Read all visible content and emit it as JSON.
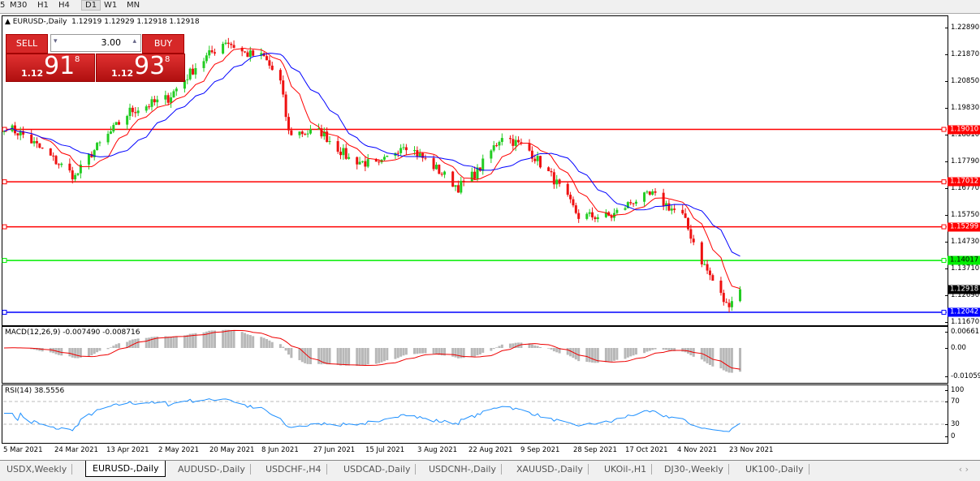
{
  "timeframes": [
    "5",
    "M30",
    "H1",
    "H4",
    "D1",
    "W1",
    "MN"
  ],
  "active_timeframe": "D1",
  "chart": {
    "title": "EURUSD-,Daily",
    "ohlc": "1.12919 1.12929 1.12918 1.12918"
  },
  "trade_panel": {
    "sell_label": "SELL",
    "buy_label": "BUY",
    "lot": "3.00",
    "sell_small": "1.12",
    "sell_big": "91",
    "sell_exp": "8",
    "buy_small": "1.12",
    "buy_big": "93",
    "buy_exp": "8"
  },
  "price_axis": [
    "1.22890",
    "1.21870",
    "1.20850",
    "1.19830",
    "1.18810",
    "1.17790",
    "1.16770",
    "1.15750",
    "1.14730",
    "1.13710",
    "1.12690",
    "1.11670"
  ],
  "horizontal_lines": [
    {
      "price": "1.19010",
      "color": "#ff0000"
    },
    {
      "price": "1.17012",
      "color": "#ff0000"
    },
    {
      "price": "1.15299",
      "color": "#ff0000"
    },
    {
      "price": "1.14017",
      "color": "#00ee00"
    },
    {
      "price": "1.12042",
      "color": "#0000ff"
    }
  ],
  "current_price": "1.12918",
  "macd": {
    "label": "MACD(12,26,9) -0.007490 -0.008716",
    "axis": [
      "0.006611",
      "0.00",
      "-0.01059"
    ]
  },
  "rsi": {
    "label": "RSI(14) 38.5556",
    "axis": [
      "100",
      "70",
      "30",
      "0"
    ]
  },
  "date_axis": [
    "5 Mar 2021",
    "24 Mar 2021",
    "13 Apr 2021",
    "2 May 2021",
    "20 May 2021",
    "8 Jun 2021",
    "27 Jun 2021",
    "15 Jul 2021",
    "3 Aug 2021",
    "22 Aug 2021",
    "9 Sep 2021",
    "28 Sep 2021",
    "17 Oct 2021",
    "4 Nov 2021",
    "23 Nov 2021"
  ],
  "tabs": [
    "USDX,Weekly",
    "EURUSD-,Daily",
    "AUDUSD-,Daily",
    "USDCHF-,H4",
    "USDCAD-,Daily",
    "USDCNH-,Daily",
    "XAUUSD-,Daily",
    "UKOil-,H1",
    "DJ30-,Weekly",
    "UK100-,Daily"
  ],
  "active_tab": "EURUSD-,Daily",
  "chart_data": {
    "type": "candlestick",
    "approx_close_path": [
      [
        "5 Mar 2021",
        1.1914
      ],
      [
        "12 Mar 2021",
        1.188
      ],
      [
        "31 Mar 2021",
        1.172
      ],
      [
        "6 Apr 2021",
        1.181
      ],
      [
        "20 Apr 2021",
        1.197
      ],
      [
        "4 May 2021",
        1.202
      ],
      [
        "14 May 2021",
        1.214
      ],
      [
        "25 May 2021",
        1.224
      ],
      [
        "1 Jun 2021",
        1.219
      ],
      [
        "8 Jun 2021",
        1.2175
      ],
      [
        "14 Jun 2021",
        1.208
      ],
      [
        "17 Jun 2021",
        1.1889
      ],
      [
        "29 Jun 2021",
        1.189
      ],
      [
        "9 Jul 2021",
        1.179
      ],
      [
        "20 Jul 2021",
        1.176
      ],
      [
        "29 Jul 2021",
        1.185
      ],
      [
        "9 Aug 2021",
        1.176
      ],
      [
        "18 Aug 2021",
        1.168
      ],
      [
        "25 Aug 2021",
        1.174
      ],
      [
        "3 Sep 2021",
        1.188
      ],
      [
        "13 Sep 2021",
        1.182
      ],
      [
        "22 Sep 2021",
        1.171
      ],
      [
        "1 Oct 2021",
        1.157
      ],
      [
        "13 Oct 2021",
        1.157
      ],
      [
        "21 Oct 2021",
        1.163
      ],
      [
        "28 Oct 2021",
        1.165
      ],
      [
        "8 Nov 2021",
        1.157
      ],
      [
        "15 Nov 2021",
        1.14
      ],
      [
        "24 Nov 2021",
        1.123
      ],
      [
        "29 Nov 2021",
        1.12918
      ]
    ],
    "moving_averages": [
      {
        "color": "#ff0000"
      },
      {
        "color": "#0000ff"
      }
    ],
    "ylim": [
      1.1167,
      1.2289
    ]
  }
}
